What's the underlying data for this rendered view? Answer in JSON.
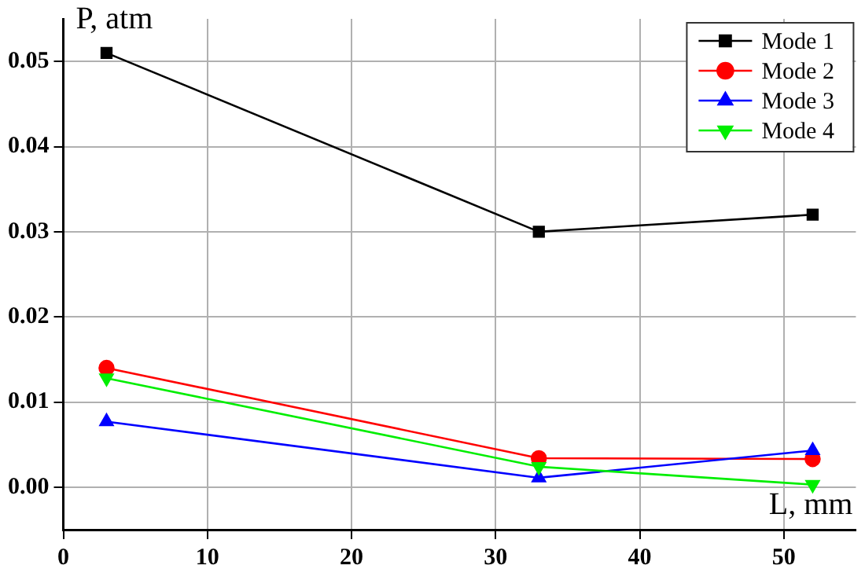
{
  "chart_data": {
    "type": "line",
    "xlabel": "L, mm",
    "ylabel": "P, atm",
    "x": [
      3,
      33,
      52
    ],
    "series": [
      {
        "name": "Mode 1",
        "color": "#000000",
        "marker": "square",
        "values": [
          0.051,
          0.03,
          0.032
        ]
      },
      {
        "name": "Mode 2",
        "color": "#ff0000",
        "marker": "circle",
        "values": [
          0.014,
          0.0034,
          0.0033
        ]
      },
      {
        "name": "Mode 3",
        "color": "#0000ff",
        "marker": "triangle",
        "values": [
          0.0077,
          0.0011,
          0.0043
        ]
      },
      {
        "name": "Mode 4",
        "color": "#00ee00",
        "marker": "triangle",
        "values": [
          0.0128,
          0.0024,
          0.0003
        ]
      }
    ],
    "xlim": [
      0,
      55
    ],
    "xticks": [
      0,
      10,
      20,
      30,
      40,
      50
    ],
    "ylim": [
      -0.005,
      0.055
    ],
    "yticks": [
      {
        "value": 0,
        "label": "0.00"
      },
      {
        "value": 0.01,
        "label": "0.01"
      },
      {
        "value": 0.02,
        "label": "0.02"
      },
      {
        "value": 0.03,
        "label": "0.03"
      },
      {
        "value": 0.04,
        "label": "0.04"
      },
      {
        "value": 0.05,
        "label": "0.05"
      }
    ],
    "grid": true,
    "legend": "top right"
  }
}
